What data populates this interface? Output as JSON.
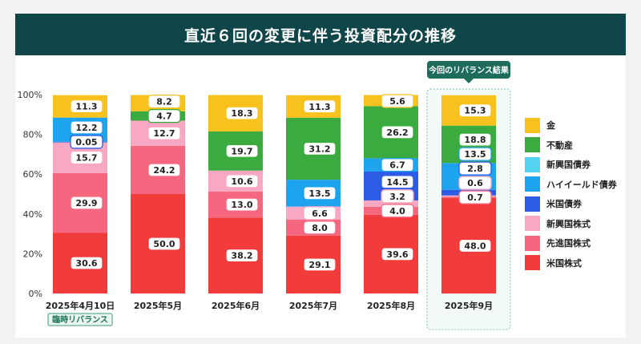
{
  "title": "直近６回の変更に伴う投資配分の推移",
  "chart_data": {
    "type": "bar",
    "stacked": true,
    "categories": [
      "2025年4月10日",
      "2025年5月",
      "2025年6月",
      "2025年7月",
      "2025年8月",
      "2025年9月"
    ],
    "ylim": [
      0,
      100
    ],
    "yticks": [
      "0%",
      "20%",
      "40%",
      "60%",
      "80%",
      "100%"
    ],
    "series": [
      {
        "name": "米国株式",
        "color": "#f23b3b",
        "values": [
          30.6,
          50.0,
          38.2,
          29.1,
          39.6,
          48.0
        ]
      },
      {
        "name": "先進国株式",
        "color": "#f4677f",
        "values": [
          29.9,
          24.2,
          13.0,
          8.0,
          4.0,
          0.7
        ]
      },
      {
        "name": "新興国株式",
        "color": "#f9a8c3",
        "values": [
          15.7,
          12.7,
          10.6,
          6.6,
          3.2,
          0.6
        ]
      },
      {
        "name": "米国債券",
        "color": "#2c5be6",
        "values": [
          0.05,
          0.0,
          0.0,
          0.0,
          14.5,
          2.8
        ]
      },
      {
        "name": "ハイイールド債券",
        "color": "#1ea3ee",
        "values": [
          12.2,
          0.0,
          0.0,
          13.5,
          6.7,
          13.5
        ]
      },
      {
        "name": "新興国債券",
        "color": "#54d3f0",
        "values": [
          0.0,
          0.0,
          0.0,
          0.0,
          0.0,
          0.0
        ]
      },
      {
        "name": "不動産",
        "color": "#3bab3f",
        "values": [
          0.0,
          4.7,
          19.7,
          31.2,
          26.2,
          18.8
        ]
      },
      {
        "name": "金",
        "color": "#f7c21d",
        "values": [
          11.3,
          8.2,
          18.3,
          11.3,
          5.6,
          15.3
        ]
      }
    ],
    "data_labels": [
      [
        "30.6",
        "29.9",
        "15.7",
        "0.05",
        "12.2",
        "",
        "",
        "11.3"
      ],
      [
        "50.0",
        "24.2",
        "12.7",
        "",
        "",
        "",
        "4.7",
        "8.2"
      ],
      [
        "38.2",
        "13.0",
        "10.6",
        "",
        "",
        "",
        "19.7",
        "18.3"
      ],
      [
        "29.1",
        "8.0",
        "6.6",
        "",
        "13.5",
        "",
        "31.2",
        "11.3"
      ],
      [
        "39.6",
        "4.0",
        "3.2",
        "14.5",
        "6.7",
        "",
        "26.2",
        "5.6"
      ],
      [
        "48.0",
        "0.7",
        "0.6",
        "2.8",
        "13.5",
        "",
        "18.8",
        "15.3"
      ]
    ],
    "legend_order": [
      "金",
      "不動産",
      "新興国債券",
      "ハイイールド債券",
      "米国債券",
      "新興国株式",
      "先進国株式",
      "米国株式"
    ],
    "legend_position": "right",
    "annotations": {
      "first_bar_tag": "臨時リバランス",
      "last_bar_callout": "今回のリバランス結果"
    }
  }
}
